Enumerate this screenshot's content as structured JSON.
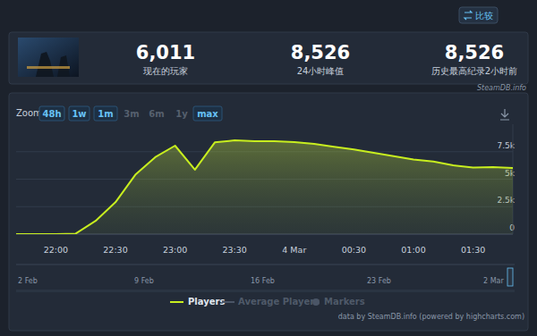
{
  "toolbar": {
    "compare": "比较"
  },
  "header": {
    "stats": [
      {
        "value": "6,011",
        "label": "现在的玩家"
      },
      {
        "value": "8,526",
        "label": "24小时峰值"
      },
      {
        "value": "8,526",
        "label": "历史最高纪录2小时前"
      }
    ]
  },
  "source": "SteamDB.info",
  "zoom": {
    "label": "Zoom",
    "buttons": [
      {
        "text": "48h",
        "enabled": true
      },
      {
        "text": "1w",
        "enabled": true
      },
      {
        "text": "1m",
        "enabled": true
      },
      {
        "text": "3m",
        "enabled": false
      },
      {
        "text": "6m",
        "enabled": false
      },
      {
        "text": "1y",
        "enabled": false
      },
      {
        "text": "max",
        "enabled": true
      }
    ]
  },
  "chart_data": {
    "type": "line",
    "categories": [
      null,
      null,
      "22:00",
      null,
      null,
      "22:30",
      null,
      null,
      "23:00",
      null,
      null,
      "23:30",
      null,
      null,
      "4 Mar",
      null,
      null,
      "00:30",
      null,
      null,
      "01:00",
      null,
      null,
      "01:30",
      null,
      null
    ],
    "series": [
      {
        "name": "Players",
        "color": "#c8ee1f",
        "values": [
          0,
          0,
          0,
          50,
          1200,
          2900,
          5400,
          7000,
          8050,
          5860,
          8350,
          8526,
          8450,
          8450,
          8380,
          8200,
          7950,
          7700,
          7400,
          7100,
          6800,
          6600,
          6250,
          6050,
          6100,
          6011
        ]
      }
    ],
    "ylim": [
      0,
      10000
    ],
    "yticks": [
      0,
      {
        "value": 2500,
        "label": "2.5k"
      },
      {
        "value": 5000,
        "label": "5k"
      },
      {
        "value": 7500,
        "label": "7.5k"
      }
    ],
    "grid": true,
    "legend": "bottom"
  },
  "legend_inactive": [
    "Average Players",
    "Markers"
  ],
  "navigator": {
    "labels": [
      "2 Feb",
      "9 Feb",
      "16 Feb",
      "23 Feb",
      "2 Mar"
    ]
  },
  "credit": "data by SteamDB.info (powered by highcharts.com)"
}
